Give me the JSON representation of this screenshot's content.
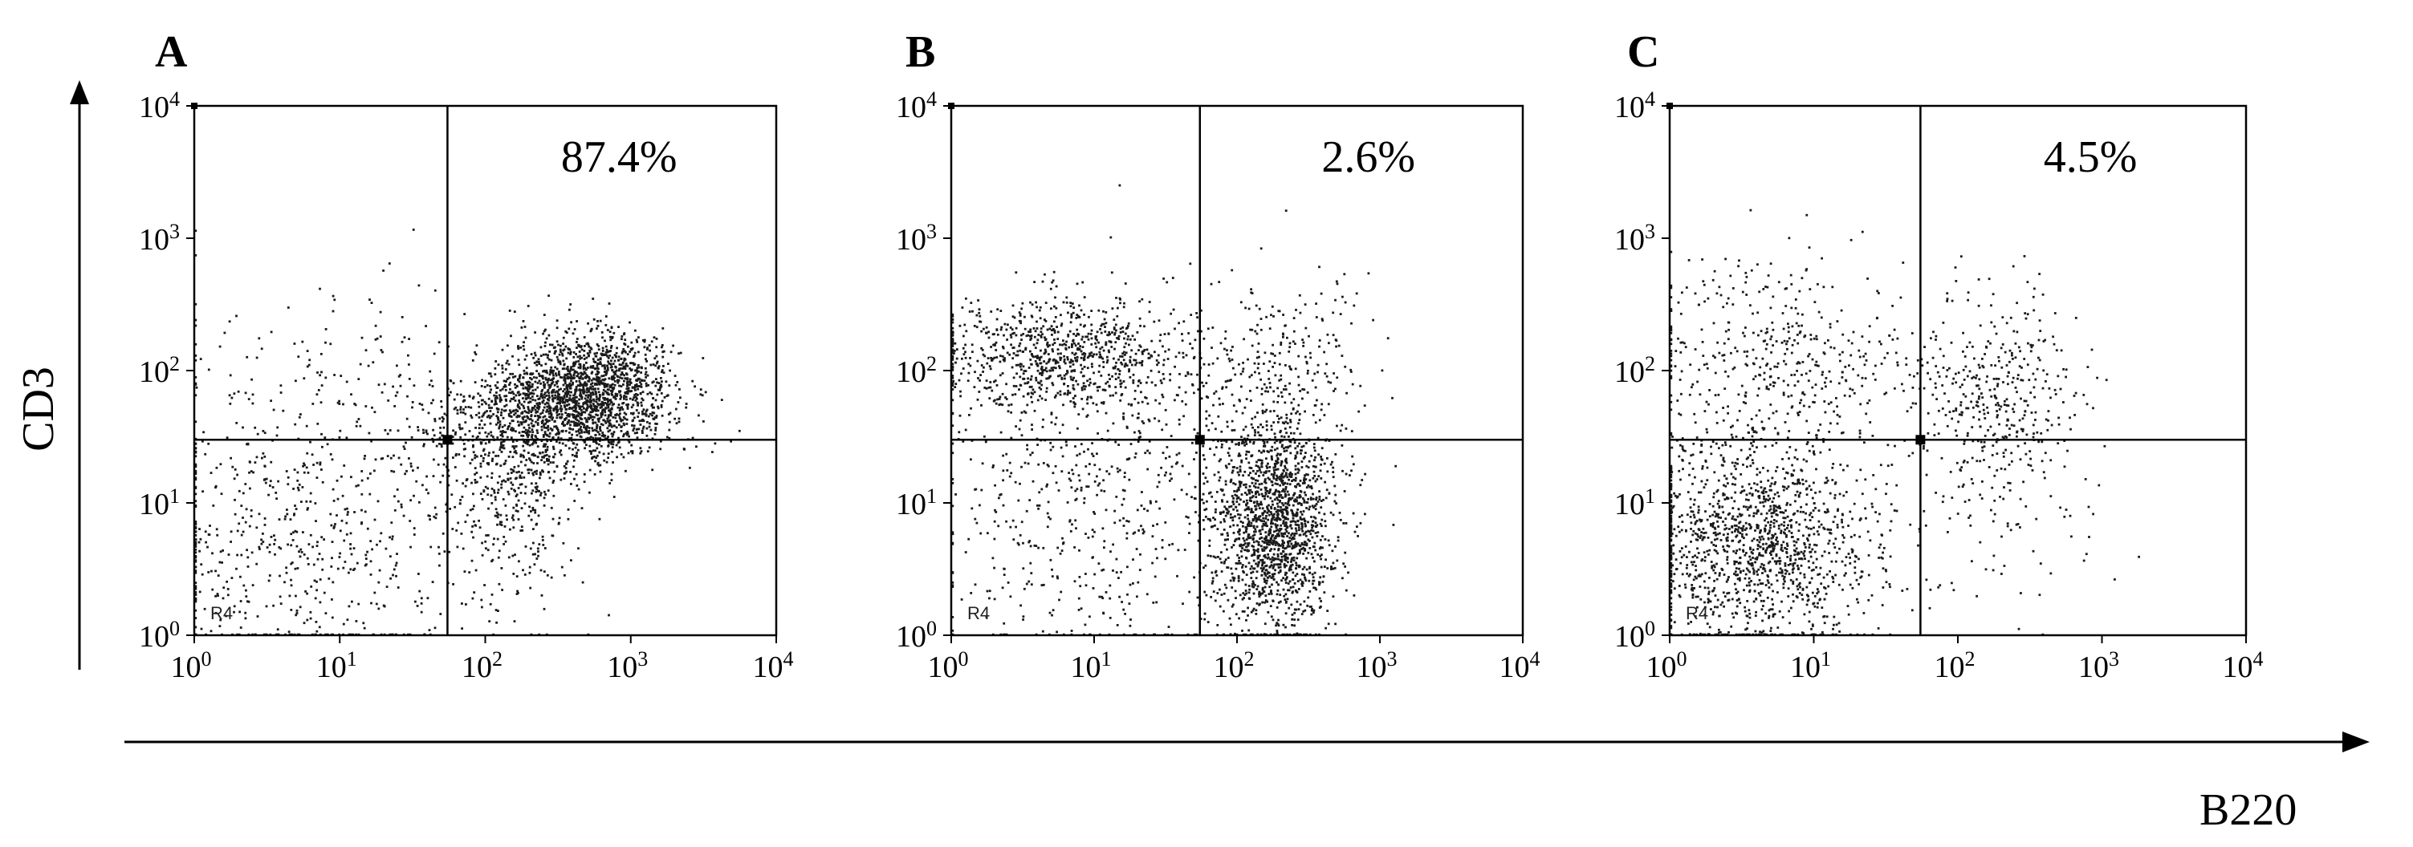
{
  "colors": {
    "ink": "#000000",
    "dot": "#1a1a1a",
    "background": "#ffffff"
  },
  "figure": {
    "x_axis_label": "B220",
    "y_axis_label": "CD3"
  },
  "chart_data": [
    {
      "type": "scatter",
      "panel": "A",
      "xlabel": "B220",
      "ylabel": "CD3",
      "x_scale": "log",
      "y_scale": "log",
      "xlim": [
        1,
        10000
      ],
      "ylim": [
        1,
        10000
      ],
      "x_ticks": [
        {
          "base": "10",
          "exp": "0"
        },
        {
          "base": "10",
          "exp": "1"
        },
        {
          "base": "10",
          "exp": "2"
        },
        {
          "base": "10",
          "exp": "3"
        },
        {
          "base": "10",
          "exp": "4"
        }
      ],
      "y_ticks": [
        {
          "base": "10",
          "exp": "0"
        },
        {
          "base": "10",
          "exp": "1"
        },
        {
          "base": "10",
          "exp": "2"
        },
        {
          "base": "10",
          "exp": "3"
        },
        {
          "base": "10",
          "exp": "4"
        }
      ],
      "quadrant_gate": {
        "x": 55,
        "y": 30
      },
      "annotation": "87.4%",
      "annotation_quadrant": "upper-right",
      "gate_label": "R4",
      "grid": false,
      "clusters": [
        {
          "cx": 550,
          "cy": 70,
          "spread_x": 0.28,
          "spread_y": 0.22,
          "count": 1500,
          "label": "dense double-positive population"
        },
        {
          "cx": 200,
          "cy": 40,
          "spread_x": 0.35,
          "spread_y": 0.25,
          "count": 700
        },
        {
          "cx": 150,
          "cy": 10,
          "spread_x": 0.25,
          "spread_y": 0.45,
          "count": 300
        },
        {
          "cx": 8,
          "cy": 20,
          "spread_x": 0.75,
          "spread_y": 0.6,
          "count": 500
        },
        {
          "cx": 5,
          "cy": 3,
          "spread_x": 0.6,
          "spread_y": 0.45,
          "count": 300
        }
      ]
    },
    {
      "type": "scatter",
      "panel": "B",
      "xlabel": "B220",
      "ylabel": "CD3",
      "x_scale": "log",
      "y_scale": "log",
      "xlim": [
        1,
        10000
      ],
      "ylim": [
        1,
        10000
      ],
      "x_ticks": [
        {
          "base": "10",
          "exp": "0"
        },
        {
          "base": "10",
          "exp": "1"
        },
        {
          "base": "10",
          "exp": "2"
        },
        {
          "base": "10",
          "exp": "3"
        },
        {
          "base": "10",
          "exp": "4"
        }
      ],
      "y_ticks": [
        {
          "base": "10",
          "exp": "0"
        },
        {
          "base": "10",
          "exp": "1"
        },
        {
          "base": "10",
          "exp": "2"
        },
        {
          "base": "10",
          "exp": "3"
        },
        {
          "base": "10",
          "exp": "4"
        }
      ],
      "quadrant_gate": {
        "x": 55,
        "y": 30
      },
      "annotation": "2.6%",
      "annotation_quadrant": "upper-right",
      "gate_label": "R4",
      "grid": false,
      "clusters": [
        {
          "cx": 180,
          "cy": 7,
          "spread_x": 0.22,
          "spread_y": 0.4,
          "count": 1600,
          "label": "B220+ CD3- population"
        },
        {
          "cx": 6,
          "cy": 130,
          "spread_x": 0.45,
          "spread_y": 0.22,
          "count": 900,
          "label": "CD3+ B220- population"
        },
        {
          "cx": 12,
          "cy": 10,
          "spread_x": 0.6,
          "spread_y": 0.6,
          "count": 600
        },
        {
          "cx": 200,
          "cy": 100,
          "spread_x": 0.3,
          "spread_y": 0.35,
          "count": 250
        }
      ]
    },
    {
      "type": "scatter",
      "panel": "C",
      "xlabel": "B220",
      "ylabel": "CD3",
      "x_scale": "log",
      "y_scale": "log",
      "xlim": [
        1,
        10000
      ],
      "ylim": [
        1,
        10000
      ],
      "x_ticks": [
        {
          "base": "10",
          "exp": "0"
        },
        {
          "base": "10",
          "exp": "1"
        },
        {
          "base": "10",
          "exp": "2"
        },
        {
          "base": "10",
          "exp": "3"
        },
        {
          "base": "10",
          "exp": "4"
        }
      ],
      "y_ticks": [
        {
          "base": "10",
          "exp": "0"
        },
        {
          "base": "10",
          "exp": "1"
        },
        {
          "base": "10",
          "exp": "2"
        },
        {
          "base": "10",
          "exp": "3"
        },
        {
          "base": "10",
          "exp": "4"
        }
      ],
      "quadrant_gate": {
        "x": 55,
        "y": 30
      },
      "annotation": "4.5%",
      "annotation_quadrant": "upper-right",
      "gate_label": "R4",
      "grid": false,
      "clusters": [
        {
          "cx": 4,
          "cy": 5,
          "spread_x": 0.42,
          "spread_y": 0.42,
          "count": 1400,
          "label": "double-negative population"
        },
        {
          "cx": 6,
          "cy": 120,
          "spread_x": 0.45,
          "spread_y": 0.4,
          "count": 450
        },
        {
          "cx": 180,
          "cy": 60,
          "spread_x": 0.3,
          "spread_y": 0.4,
          "count": 400
        },
        {
          "cx": 200,
          "cy": 8,
          "spread_x": 0.35,
          "spread_y": 0.45,
          "count": 80
        }
      ]
    }
  ]
}
